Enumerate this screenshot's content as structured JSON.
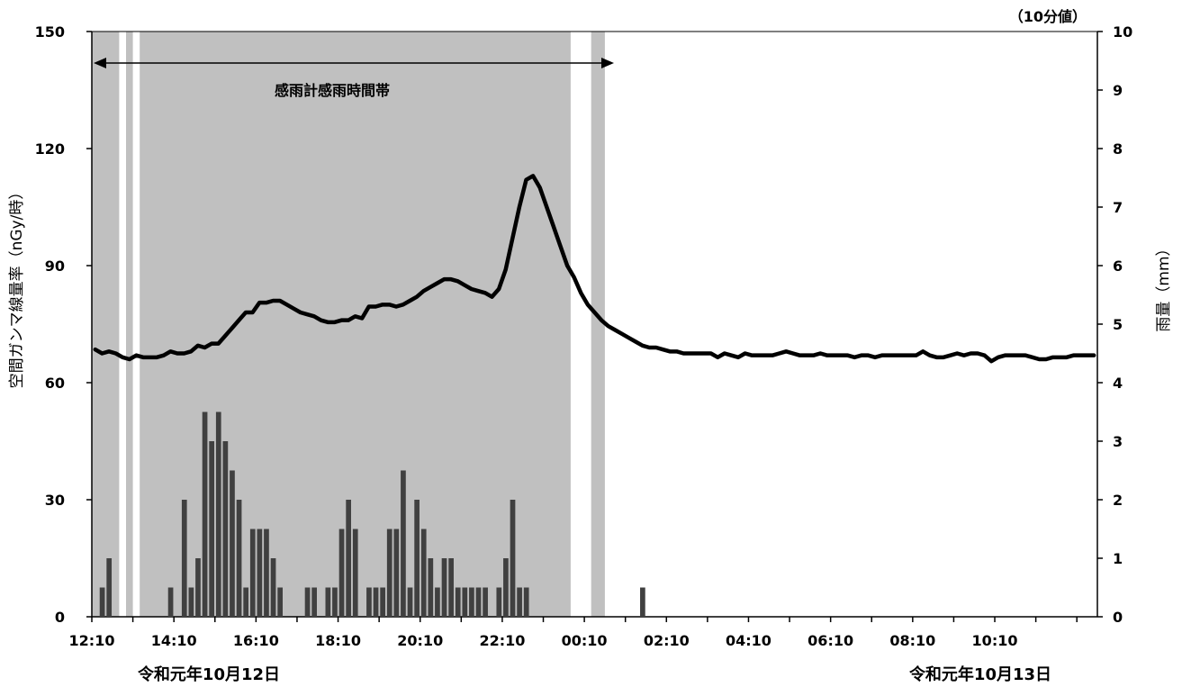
{
  "chart_data": {
    "type": "line",
    "note": "（10分値）",
    "ylabel_left": "空間ガンマ線量率（nGy/時）",
    "ylabel_right": "雨量（mm）",
    "ylim_left": [
      0,
      150
    ],
    "ylim_right": [
      0,
      10
    ],
    "yticks_left": [
      0,
      30,
      60,
      90,
      120,
      150
    ],
    "yticks_right": [
      0,
      1,
      2,
      3,
      4,
      5,
      6,
      7,
      8,
      9,
      10
    ],
    "x_tick_labels": [
      "12:10",
      "14:10",
      "16:10",
      "18:10",
      "20:10",
      "22:10",
      "00:10",
      "02:10",
      "04:10",
      "06:10",
      "08:10",
      "10:10"
    ],
    "date_labels": [
      "令和元年10月12日",
      "令和元年10月13日"
    ],
    "annotation": "感雨計感雨時間帯",
    "x_minutes_start": "12:10",
    "interval_minutes": 10,
    "rain_detected_periods": [
      [
        "12:10",
        "12:50"
      ],
      [
        "13:00",
        "13:10"
      ],
      [
        "13:20",
        "23:50"
      ],
      [
        "00:20",
        "00:40"
      ]
    ],
    "series": [
      {
        "kind": "line",
        "axis": "left",
        "values": [
          68.5,
          67.5,
          68,
          67.5,
          66.5,
          66,
          67,
          66.5,
          66.5,
          66.5,
          67,
          68,
          67.5,
          67.5,
          68,
          69.5,
          69,
          70,
          70,
          72,
          74,
          76,
          78,
          78,
          80.5,
          80.5,
          81,
          81,
          80,
          79,
          78,
          77.5,
          77,
          76,
          75.5,
          75.5,
          76,
          76,
          77,
          76.5,
          79.5,
          79.5,
          80,
          80,
          79.5,
          80,
          81,
          82,
          83.5,
          84.5,
          85.5,
          86.5,
          86.5,
          86,
          85,
          84,
          83.5,
          83,
          82,
          84,
          89,
          97,
          105,
          112,
          113,
          110,
          105,
          100,
          95,
          90,
          87,
          83,
          80,
          78,
          76,
          74.5,
          73.5,
          72.5,
          71.5,
          70.5,
          69.5,
          69,
          69,
          68.5,
          68,
          68,
          67.5,
          67.5,
          67.5,
          67.5,
          67.5,
          66.5,
          67.5,
          67,
          66.5,
          67.5,
          67,
          67,
          67,
          67,
          67.5,
          68,
          67.5,
          67,
          67,
          67,
          67.5,
          67,
          67,
          67,
          67,
          66.5,
          67,
          67,
          66.5,
          67,
          67,
          67,
          67,
          67,
          67,
          68,
          67,
          66.5,
          66.5,
          67,
          67.5,
          67,
          67.5,
          67.5,
          67,
          65.5,
          66.5,
          67,
          67,
          67,
          67,
          66.5,
          66,
          66,
          66.5,
          66.5,
          66.5,
          67,
          67,
          67,
          67
        ]
      },
      {
        "kind": "bar",
        "axis": "right",
        "values": [
          0,
          0.5,
          1,
          0,
          0,
          0,
          0,
          0,
          0,
          0,
          0,
          0.5,
          0,
          2,
          0.5,
          1,
          3.5,
          3,
          3.5,
          3,
          2.5,
          2,
          0.5,
          1.5,
          1.5,
          1.5,
          1,
          0.5,
          0,
          0,
          0,
          0.5,
          0.5,
          0,
          0.5,
          0.5,
          1.5,
          2,
          1.5,
          0,
          0.5,
          0.5,
          0.5,
          1.5,
          1.5,
          2.5,
          0.5,
          2,
          1.5,
          1,
          0.5,
          1,
          1,
          0.5,
          0.5,
          0.5,
          0.5,
          0.5,
          0,
          0.5,
          1,
          2,
          0.5,
          0.5,
          0,
          0,
          0,
          0,
          0,
          0,
          0,
          0,
          0,
          0,
          0,
          0,
          0,
          0,
          0,
          0,
          0.5,
          0,
          0,
          0,
          0,
          0,
          0,
          0,
          0,
          0,
          0,
          0,
          0,
          0,
          0,
          0,
          0,
          0,
          0,
          0,
          0,
          0,
          0,
          0,
          0,
          0,
          0,
          0,
          0,
          0,
          0,
          0,
          0,
          0,
          0,
          0,
          0,
          0,
          0,
          0,
          0,
          0,
          0,
          0,
          0,
          0,
          0,
          0,
          0,
          0,
          0,
          0,
          0,
          0,
          0,
          0,
          0,
          0,
          0,
          0,
          0,
          0,
          0,
          0,
          0,
          0,
          0,
          0
        ]
      }
    ]
  }
}
